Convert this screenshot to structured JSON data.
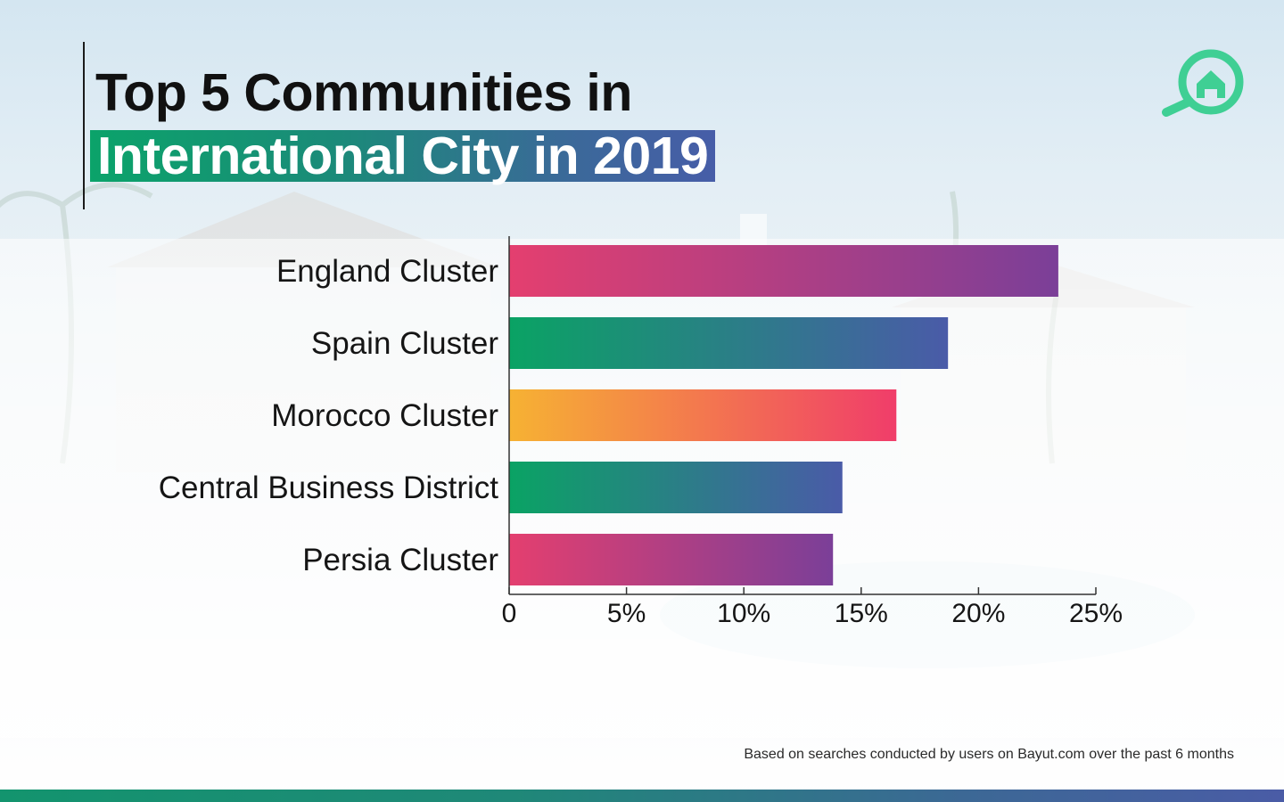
{
  "title": {
    "line1": "Top 5 Communities in",
    "line2": "International City in 2019"
  },
  "logo": {
    "icon": "house-magnifier-icon",
    "color": "#3fcf94"
  },
  "footnote": "Based on searches conducted by users on Bayut.com over the past 6 months",
  "chart_data": {
    "type": "bar",
    "orientation": "horizontal",
    "title": "",
    "xlabel": "",
    "ylabel": "",
    "categories": [
      "England Cluster",
      "Spain Cluster",
      "Morocco Cluster",
      "Central Business District",
      "Persia Cluster"
    ],
    "values": [
      23.4,
      18.7,
      16.5,
      14.2,
      13.8
    ],
    "value_unit": "%",
    "xlim": [
      0,
      25
    ],
    "ticks": [
      0,
      5,
      10,
      15,
      20,
      25
    ],
    "tick_labels": [
      "0",
      "5%",
      "10%",
      "15%",
      "20%",
      "25%"
    ],
    "grid": false,
    "legend": "none",
    "bar_gradients": [
      [
        "#e43f6f",
        "#7b3f98"
      ],
      [
        "#0aa364",
        "#4a5ba8"
      ],
      [
        "#f6b233",
        "#f03d6a"
      ],
      [
        "#0aa364",
        "#4a5ba8"
      ],
      [
        "#e43f6f",
        "#7b3f98"
      ]
    ]
  }
}
